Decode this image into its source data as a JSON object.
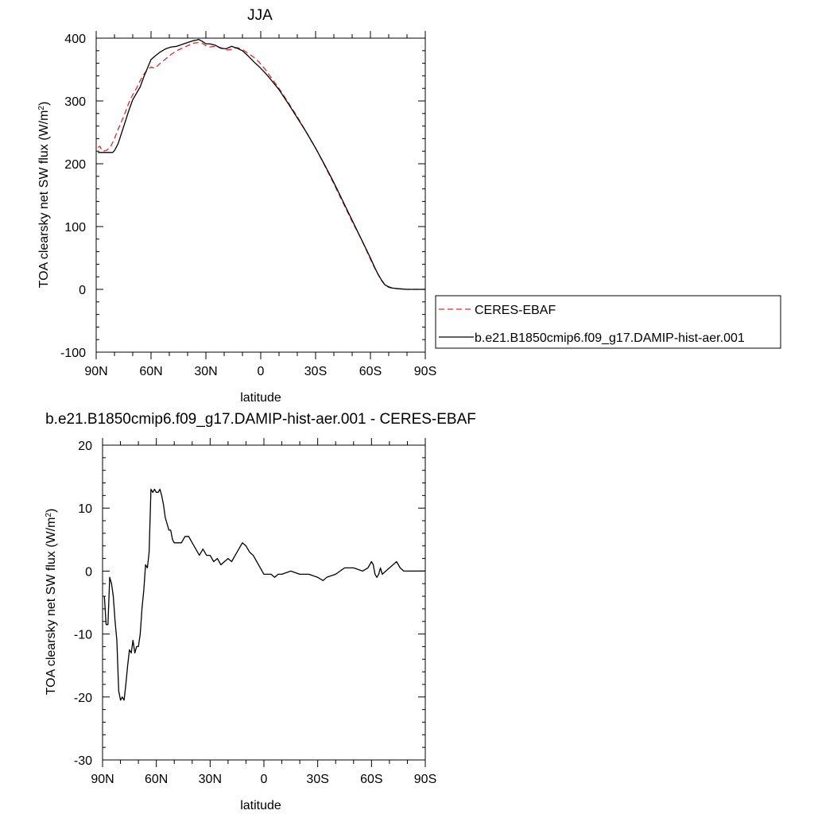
{
  "chart_data": [
    {
      "type": "line",
      "title": "JJA",
      "xlabel": "latitude",
      "ylabel": "TOA clearsky net SW flux (W/m",
      "ylabel_sup": "2",
      "ylabel_tail": ")",
      "xlim": [
        90,
        -90
      ],
      "ylim": [
        -100,
        400
      ],
      "xticks": [
        90,
        60,
        30,
        0,
        -30,
        -60,
        -90
      ],
      "xtick_labels": [
        "90N",
        "60N",
        "30N",
        "0",
        "30S",
        "60S",
        "90S"
      ],
      "yticks": [
        -100,
        0,
        100,
        200,
        300,
        400
      ],
      "ytick_labels": [
        "-100",
        "0",
        "100",
        "200",
        "300",
        "400"
      ],
      "legend": {
        "placement": "right"
      },
      "series": [
        {
          "name": "CERES-EBAF",
          "color": "#e8262a",
          "dash": "dashed",
          "x": [
            89,
            88,
            87,
            86,
            84,
            82,
            80,
            78,
            75,
            72,
            70,
            68,
            66,
            64,
            62,
            60,
            58,
            55,
            52,
            49,
            46,
            43,
            40,
            37,
            34,
            32,
            30,
            28,
            25,
            22,
            19,
            16,
            13,
            10,
            7,
            4,
            1,
            -2,
            -5,
            -10,
            -15,
            -20,
            -25,
            -30,
            -35,
            -40,
            -45,
            -50,
            -55,
            -60,
            -62,
            -64,
            -66,
            -68,
            -70,
            -72,
            -75,
            -80,
            -85,
            -90
          ],
          "y": [
            226,
            228,
            222,
            220,
            222,
            228,
            240,
            255,
            275,
            298,
            310,
            320,
            332,
            342,
            350,
            354,
            352,
            360,
            367,
            374,
            380,
            384,
            388,
            392,
            393,
            392,
            388,
            386,
            387,
            385,
            381,
            382,
            385,
            382,
            376,
            370,
            362,
            352,
            340,
            320,
            298,
            275,
            250,
            225,
            197,
            168,
            138,
            108,
            80,
            48,
            36,
            25,
            14,
            7,
            3,
            2,
            1,
            0,
            0,
            0
          ]
        },
        {
          "name": "b.e21.B1850cmip6.f09_g17.DAMIP-hist-aer.001",
          "color": "#000000",
          "dash": "solid",
          "x": [
            89,
            87,
            85,
            83,
            81,
            80,
            78,
            76,
            74,
            72,
            70,
            68,
            66,
            64,
            62,
            60,
            58,
            55,
            52,
            49,
            46,
            43,
            40,
            37,
            35,
            34,
            32,
            30,
            28,
            25,
            22,
            19,
            16,
            13,
            10,
            7,
            4,
            1,
            -2,
            -5,
            -10,
            -15,
            -20,
            -25,
            -30,
            -35,
            -40,
            -45,
            -50,
            -55,
            -60,
            -62,
            -64,
            -66,
            -68,
            -70,
            -72,
            -75,
            -80,
            -85,
            -90
          ],
          "y": [
            218,
            218,
            218,
            218,
            218,
            221,
            232,
            250,
            268,
            286,
            302,
            312,
            322,
            338,
            352,
            366,
            371,
            378,
            383,
            386,
            387,
            390,
            393,
            396,
            397,
            398,
            395,
            391,
            391,
            389,
            384,
            383,
            387,
            384,
            380,
            372,
            363,
            355,
            346,
            336,
            318,
            296,
            273,
            250,
            225,
            198,
            170,
            140,
            110,
            80,
            50,
            37,
            25,
            15,
            7,
            4,
            2,
            1,
            0,
            0,
            0
          ]
        }
      ]
    },
    {
      "type": "line",
      "title": "b.e21.B1850cmip6.f09_g17.DAMIP-hist-aer.001 - CERES-EBAF",
      "xlabel": "latitude",
      "ylabel": "TOA clearsky net SW flux (W/m",
      "ylabel_sup": "2",
      "ylabel_tail": ")",
      "xlim": [
        90,
        -90
      ],
      "ylim": [
        -30,
        20
      ],
      "xticks": [
        90,
        60,
        30,
        0,
        -30,
        -60,
        -90
      ],
      "xtick_labels": [
        "90N",
        "60N",
        "30N",
        "0",
        "30S",
        "60S",
        "90S"
      ],
      "yticks": [
        -30,
        -20,
        -10,
        0,
        10,
        20
      ],
      "ytick_labels": [
        "-30",
        "-20",
        "-10",
        "0",
        "10",
        "20"
      ],
      "series": [
        {
          "color": "#000000",
          "dash": "solid",
          "x": [
            89,
            88,
            87,
            86,
            85,
            84,
            83,
            82,
            81,
            80,
            79,
            78,
            77,
            76,
            75,
            74,
            73,
            72,
            71,
            70,
            69,
            68,
            67,
            66,
            65,
            64,
            63,
            62,
            61,
            60,
            59,
            58,
            57,
            56,
            55,
            54,
            53,
            52,
            51,
            50,
            48,
            46,
            44,
            42,
            40,
            38,
            36,
            34,
            32,
            30,
            28,
            26,
            24,
            22,
            20,
            18,
            16,
            14,
            12,
            10,
            8,
            6,
            4,
            2,
            0,
            -2,
            -4,
            -6,
            -8,
            -10,
            -15,
            -20,
            -25,
            -30,
            -33,
            -35,
            -40,
            -45,
            -50,
            -55,
            -58,
            -60,
            -61,
            -62,
            -63,
            -64,
            -65,
            -66,
            -68,
            -70,
            -72,
            -74,
            -75,
            -76,
            -78,
            -80,
            -85,
            -90
          ],
          "y": [
            -4,
            -8.5,
            -8.5,
            -1,
            -2,
            -4,
            -8,
            -11,
            -19,
            -20.5,
            -20,
            -20.5,
            -18,
            -15,
            -12.5,
            -13,
            -11,
            -13,
            -12,
            -12,
            -10,
            -6,
            -3,
            1,
            0.5,
            3,
            13,
            12.5,
            13,
            12.5,
            12.5,
            13,
            12,
            10.5,
            8.5,
            7.5,
            6.5,
            6.5,
            5,
            4.5,
            4.5,
            4.5,
            5.5,
            5.5,
            4.5,
            3.5,
            2.5,
            3.5,
            2.5,
            2.5,
            1.5,
            2,
            1,
            1.5,
            2,
            1.5,
            2.5,
            3.5,
            4.5,
            4,
            3,
            2.5,
            1.5,
            0.5,
            -0.5,
            -0.5,
            -0.5,
            -1,
            -0.5,
            -0.5,
            0,
            -0.5,
            -0.5,
            -1,
            -1.5,
            -1,
            -0.5,
            0.5,
            0.5,
            0,
            0.5,
            1.5,
            1,
            -0.5,
            -1,
            -0.5,
            0.5,
            -0.5,
            0,
            0.5,
            1,
            1.5,
            1,
            0.5,
            0,
            0,
            0,
            0
          ]
        }
      ]
    }
  ]
}
